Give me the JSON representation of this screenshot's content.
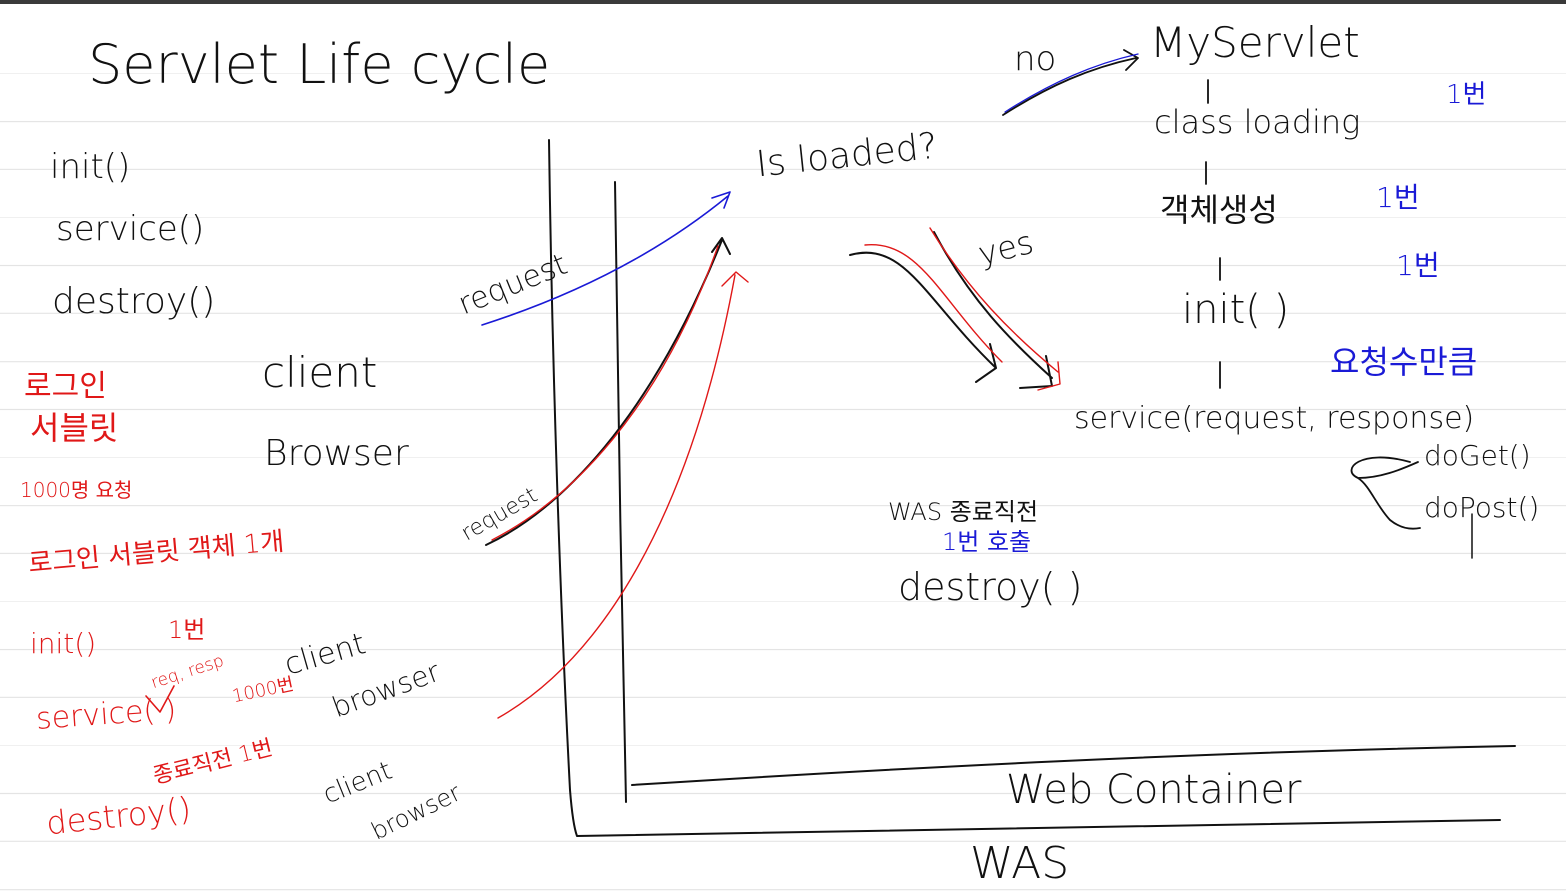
{
  "title": "Servlet Life cycle",
  "colors": {
    "ink": "#111111",
    "red": "#e01818",
    "blue": "#1a1ad6",
    "rule": "#e4e4e4"
  },
  "methods": [
    "init()",
    "service()",
    "destroy()"
  ],
  "client": {
    "line1": "client",
    "line2": "Browser"
  },
  "notes": {
    "login": "로그인",
    "servlet": "서블릿",
    "requests": "1000명 요청",
    "one_object": "로그인 서블릿 객체 1개",
    "init": "init()",
    "init_once": "1번",
    "service": "service(    )",
    "req_resp": "req, resp",
    "service_times": "1000번",
    "destroy_note": "종료직전 1번",
    "destroy": "destroy()"
  },
  "clients": [
    {
      "line1": "client",
      "line2": "browser"
    },
    {
      "line1": "client",
      "line2": "browser"
    }
  ],
  "requests": [
    "request",
    "request"
  ],
  "flow": {
    "question": "Is loaded?",
    "no": "no",
    "yes": "yes",
    "servlet": "MyServlet",
    "class_loading": "class loading",
    "class_loading_once": "1번",
    "create": "객체생성",
    "create_once": "1번",
    "init": "init( )",
    "init_once": "1번",
    "per_request": "요청수만큼",
    "service": "service(request, response)",
    "do_get": "doGet()",
    "do_post": "doPost()"
  },
  "shutdown": {
    "label": "WAS 종료직전",
    "once": "1번 호출",
    "destroy": "destroy( )"
  },
  "containers": {
    "web": "Web Container",
    "was": "WAS"
  }
}
